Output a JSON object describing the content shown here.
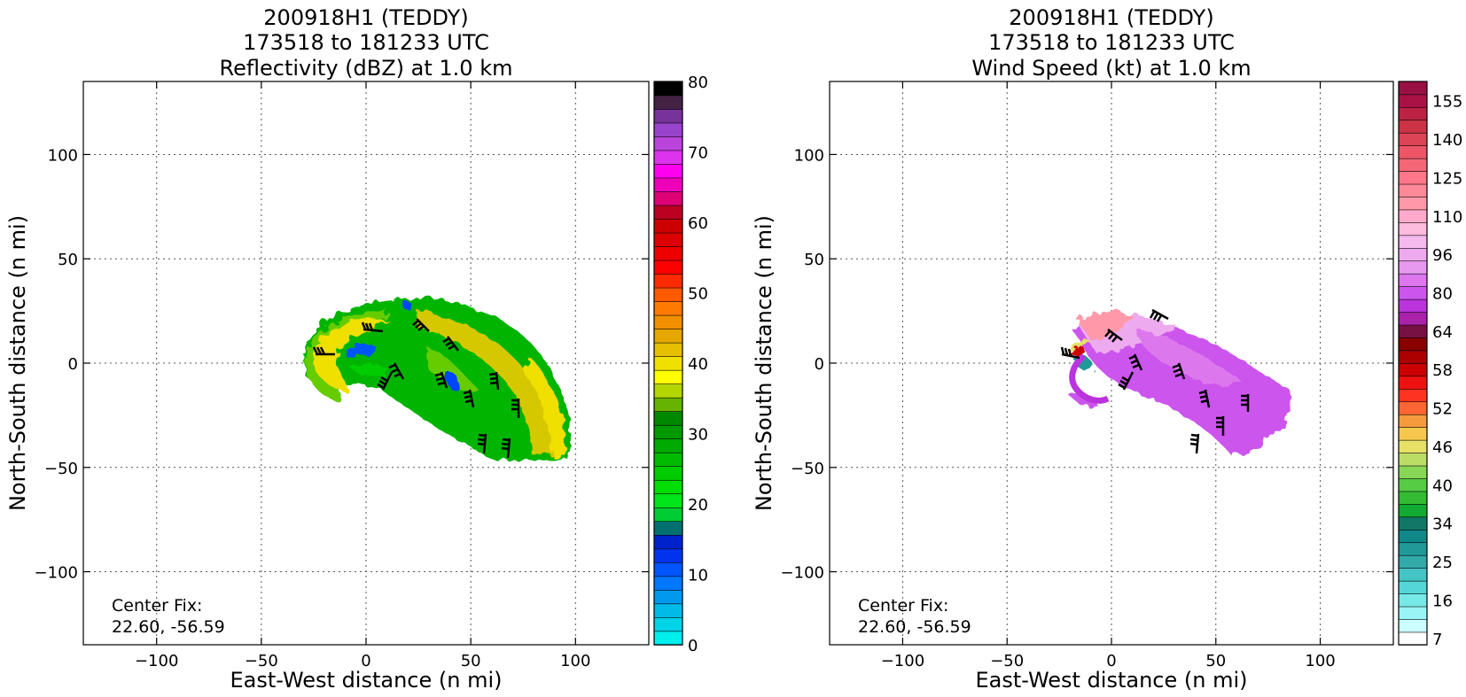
{
  "chart_data": [
    {
      "type": "radar-plan-view",
      "title": [
        "200918H1 (TEDDY)",
        "173518 to 181233 UTC",
        "Reflectivity (dBZ) at 1.0 km"
      ],
      "xlabel": "East-West distance (n mi)",
      "ylabel": "North-South distance (n mi)",
      "xlim": [
        -135,
        135
      ],
      "ylim": [
        -135,
        135
      ],
      "xticks": [
        -100,
        -50,
        0,
        50,
        100
      ],
      "yticks": [
        -100,
        -50,
        0,
        50,
        100
      ],
      "xticklabels": [
        "−100",
        "−50",
        "0",
        "50",
        "100"
      ],
      "yticklabels": [
        "−100",
        "−50",
        "0",
        "50",
        "100"
      ],
      "grid": true,
      "annotation": [
        "Center Fix:",
        "22.60, -56.59"
      ],
      "colorbar": {
        "min": 0,
        "max": 80,
        "ticks": [
          0,
          10,
          20,
          30,
          40,
          50,
          60,
          70,
          80
        ],
        "colors": [
          "#00eeee",
          "#00d4e8",
          "#00bbe8",
          "#0099ee",
          "#0077ff",
          "#0055ff",
          "#0033ee",
          "#0022cc",
          "#007070",
          "#00cc33",
          "#00e61a",
          "#00dd00",
          "#00cc00",
          "#00bb00",
          "#00aa00",
          "#009900",
          "#008800",
          "#66b300",
          "#b3d600",
          "#ffff00",
          "#f0e000",
          "#e6c000",
          "#e6a800",
          "#f09000",
          "#ff7a00",
          "#ff5a00",
          "#ff2a00",
          "#ff0000",
          "#ee0000",
          "#dd0000",
          "#cc0000",
          "#bb0022",
          "#dd0077",
          "#ee00bb",
          "#ff00ee",
          "#dd33ee",
          "#bb44dd",
          "#9944cc",
          "#773399",
          "#442244",
          "#000000"
        ]
      },
      "field": "reflectivity",
      "center_fix": [
        22.6,
        -56.59
      ]
    },
    {
      "type": "radar-plan-view",
      "title": [
        "200918H1 (TEDDY)",
        "173518 to 181233 UTC",
        "Wind Speed (kt) at 1.0 km"
      ],
      "xlabel": "East-West distance (n mi)",
      "ylabel": "North-South distance (n mi)",
      "xlim": [
        -135,
        135
      ],
      "ylim": [
        -135,
        135
      ],
      "xticks": [
        -100,
        -50,
        0,
        50,
        100
      ],
      "yticks": [
        -100,
        -50,
        0,
        50,
        100
      ],
      "xticklabels": [
        "−100",
        "−50",
        "0",
        "50",
        "100"
      ],
      "yticklabels": [
        "−100",
        "−50",
        "0",
        "50",
        "100"
      ],
      "grid": true,
      "annotation": [
        "Center Fix:",
        "22.60, -56.59"
      ],
      "colorbar": {
        "ticklabels": [
          "7",
          "16",
          "25",
          "34",
          "40",
          "46",
          "52",
          "58",
          "64",
          "80",
          "96",
          "110",
          "125",
          "140",
          "155"
        ],
        "colors": [
          "#ffffff",
          "#ccffff",
          "#99f5f5",
          "#77e8e8",
          "#55d6d6",
          "#44c4c4",
          "#33aaaa",
          "#229999",
          "#118888",
          "#117766",
          "#11aa33",
          "#33bb33",
          "#55cc44",
          "#88d655",
          "#bbdd66",
          "#e6e066",
          "#f5c84d",
          "#f59a3d",
          "#ff6633",
          "#ff3322",
          "#ee1111",
          "#cc0000",
          "#aa0000",
          "#880000",
          "#771144",
          "#aa22aa",
          "#bb33dd",
          "#cc55ee",
          "#dd77ee",
          "#e699ee",
          "#eeaaee",
          "#f5bbee",
          "#ffbbdd",
          "#ffaacc",
          "#ff99aa",
          "#ff8899",
          "#ff7788",
          "#f56677",
          "#ee5566",
          "#dd4455",
          "#cc3344",
          "#bb2244",
          "#aa1144",
          "#991144"
        ]
      },
      "field": "wind-speed",
      "center_fix": [
        22.6,
        -56.59
      ]
    }
  ]
}
